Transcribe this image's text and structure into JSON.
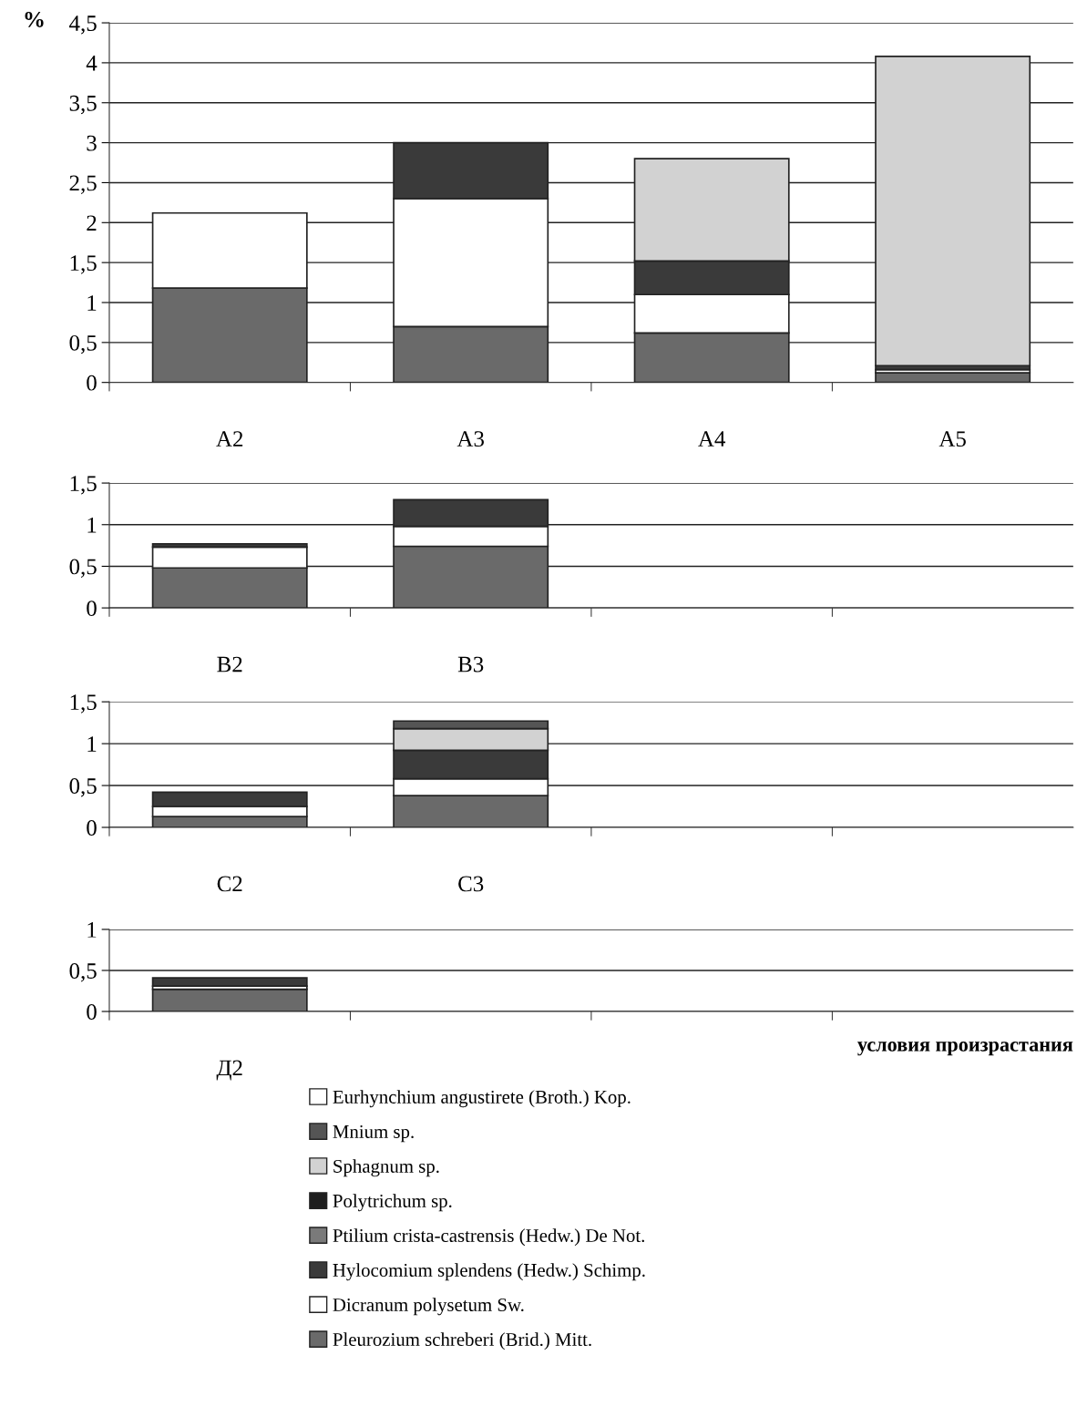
{
  "chart_data": [
    {
      "type": "bar",
      "stacked": true,
      "ylabel": "%",
      "categories": [
        "А2",
        "А3",
        "А4",
        "А5"
      ],
      "ylim": [
        0,
        4.5
      ],
      "yticks": [
        0,
        {
          "value": 0.5,
          "label": "0,5"
        },
        1,
        {
          "value": 1.5,
          "label": "1,5"
        },
        2,
        {
          "value": 2.5,
          "label": "2,5"
        },
        3,
        {
          "value": 3.5,
          "label": "3,5"
        },
        4,
        {
          "value": 4.5,
          "label": "4,5"
        }
      ],
      "grid": "y",
      "series": [
        {
          "color": "#6a6a6a",
          "values": [
            1.18,
            0.7,
            0.62,
            0.12
          ]
        },
        {
          "color": "#ffffff",
          "values": [
            0.94,
            1.6,
            0.48,
            0.04
          ]
        },
        {
          "color": "#3a3a3a",
          "values": [
            null,
            0.7,
            0.42,
            0.05
          ]
        },
        {
          "color": "#d2d2d2",
          "values": [
            null,
            null,
            1.28,
            3.87
          ]
        }
      ]
    },
    {
      "type": "bar",
      "stacked": true,
      "categories": [
        "В2",
        "В3",
        null,
        null
      ],
      "ylim": [
        0,
        1.5
      ],
      "yticks": [
        0,
        {
          "value": 0.5,
          "label": "0,5"
        },
        1,
        {
          "value": 1.5,
          "label": "1,5"
        }
      ],
      "grid": "y",
      "series": [
        {
          "color": "#6a6a6a",
          "values": [
            0.48,
            0.74,
            null,
            null
          ]
        },
        {
          "color": "#ffffff",
          "values": [
            0.25,
            0.24,
            null,
            null
          ]
        },
        {
          "color": "#3a3a3a",
          "values": [
            0.04,
            0.32,
            null,
            null
          ]
        }
      ]
    },
    {
      "type": "bar",
      "stacked": true,
      "categories": [
        "С2",
        "С3",
        null,
        null
      ],
      "ylim": [
        0,
        1.5
      ],
      "yticks": [
        0,
        {
          "value": 0.5,
          "label": "0,5"
        },
        1,
        {
          "value": 1.5,
          "label": "1,5"
        }
      ],
      "grid": "y",
      "series": [
        {
          "color": "#6a6a6a",
          "values": [
            0.13,
            0.38,
            null,
            null
          ]
        },
        {
          "color": "#ffffff",
          "values": [
            0.12,
            0.2,
            null,
            null
          ]
        },
        {
          "color": "#3a3a3a",
          "values": [
            0.17,
            0.34,
            null,
            null
          ]
        },
        {
          "color": "#d2d2d2",
          "values": [
            null,
            0.26,
            null,
            null
          ]
        },
        {
          "color": "#555555",
          "values": [
            null,
            0.09,
            null,
            null
          ]
        }
      ]
    },
    {
      "type": "bar",
      "stacked": true,
      "categories": [
        "Д2",
        null,
        null,
        null
      ],
      "xlabel": "условия произрастания",
      "ylim": [
        0,
        1
      ],
      "yticks": [
        0,
        {
          "value": 0.5,
          "label": "0,5"
        },
        1
      ],
      "grid": "y",
      "legend": "bottom",
      "series": [
        {
          "name": "Pleurozium schreberi (Brid.) Mitt.",
          "color": "#6a6a6a",
          "values": [
            0.27,
            null,
            null,
            null
          ]
        },
        {
          "name": "Dicranum polysetum Sw.",
          "color": "#ffffff",
          "values": [
            0.04,
            null,
            null,
            null
          ]
        },
        {
          "name": "Hylocomium splendens (Hedw.) Schimp.",
          "color": "#3a3a3a",
          "values": [
            0.1,
            null,
            null,
            null
          ]
        },
        {
          "name": "Ptilium crista-castrensis (Hedw.) De Not.",
          "color": "#7a7a7a",
          "values": [
            null,
            null,
            null,
            null
          ]
        },
        {
          "name": "Polytrichum sp.",
          "color": "#1e1e1e",
          "values": [
            null,
            null,
            null,
            null
          ]
        },
        {
          "name": "Sphagnum sp.",
          "color": "#d2d2d2",
          "values": [
            null,
            null,
            null,
            null
          ]
        },
        {
          "name": "Mnium sp.",
          "color": "#555555",
          "values": [
            null,
            null,
            null,
            null
          ]
        },
        {
          "name": "Eurhynchium angustirete (Broth.) Kop.",
          "color": "#ffffff",
          "values": [
            null,
            null,
            null,
            null
          ]
        }
      ]
    }
  ]
}
